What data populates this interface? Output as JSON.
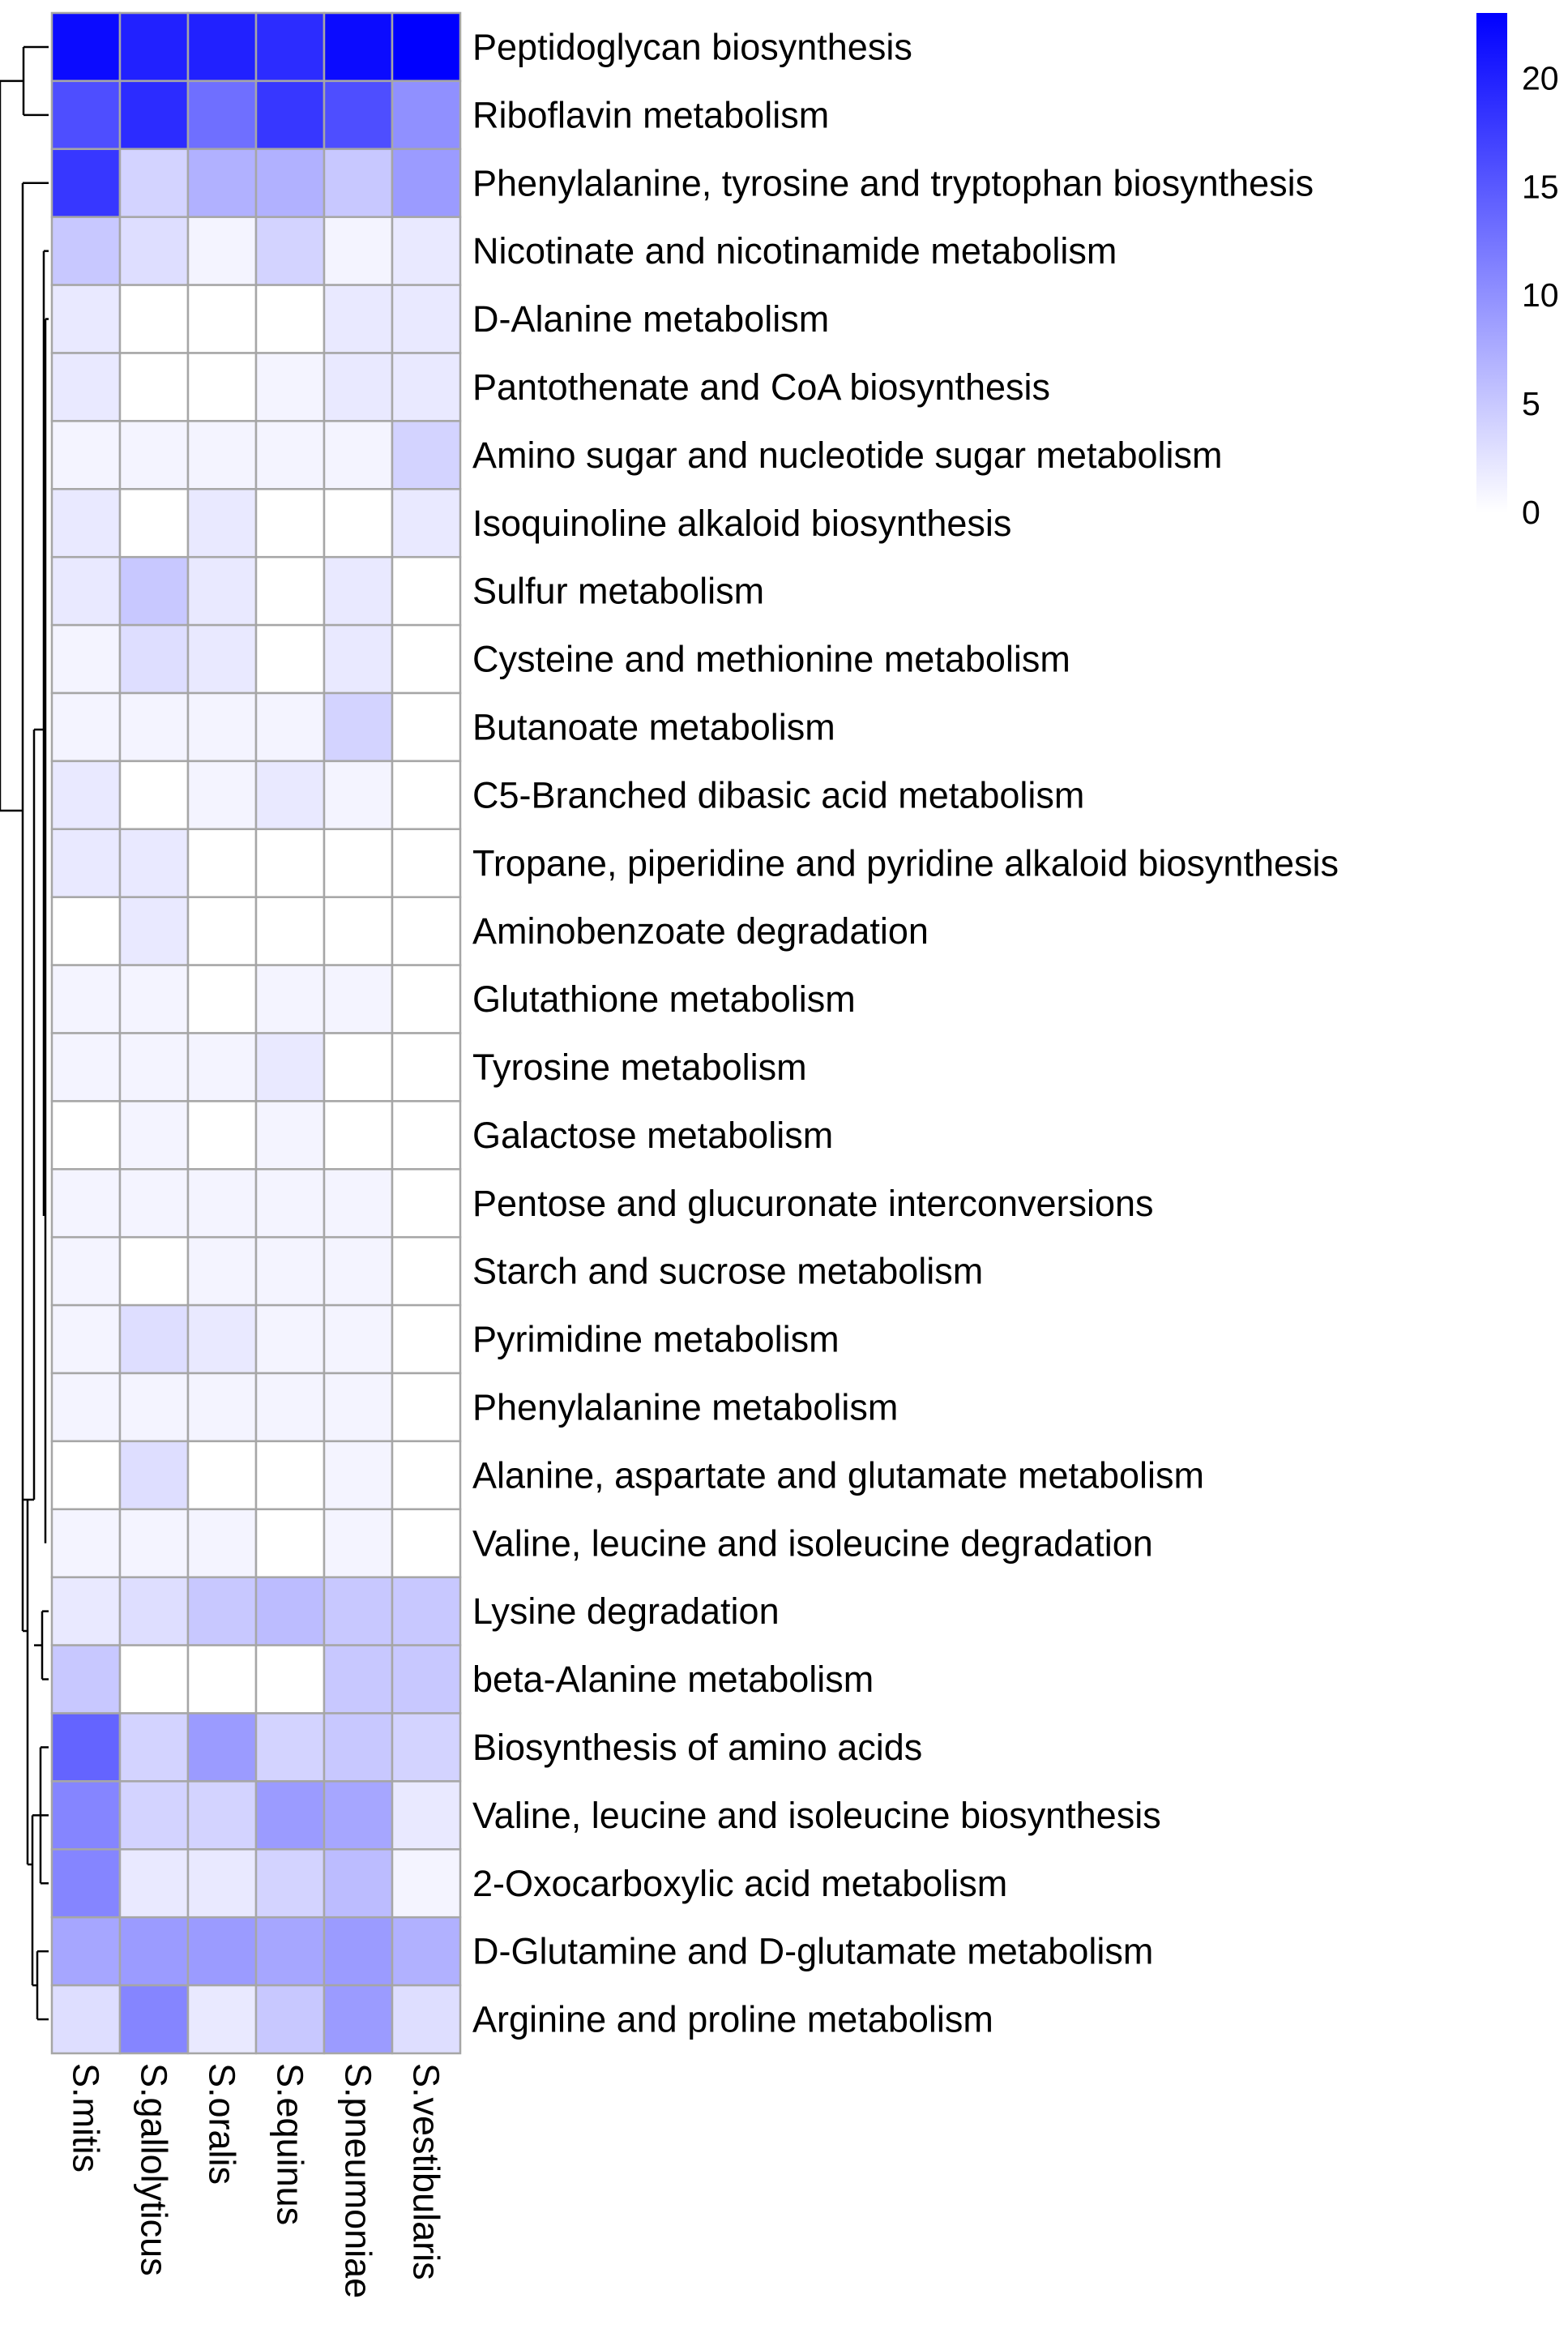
{
  "chart_data": {
    "type": "heatmap",
    "title": "",
    "xlabel": "",
    "ylabel": "",
    "columns": [
      "S.mitis",
      "S.gallolyticus",
      "S.oralis",
      "S.equinus",
      "S.pneumoniae",
      "S.vestibularis"
    ],
    "rows": [
      "Peptidoglycan biosynthesis",
      "Riboflavin metabolism",
      "Phenylalanine, tyrosine and tryptophan biosynthesis",
      "Nicotinate and nicotinamide metabolism",
      "D-Alanine metabolism",
      "Pantothenate and CoA biosynthesis",
      "Amino sugar and nucleotide sugar metabolism",
      "Isoquinoline alkaloid biosynthesis",
      "Sulfur metabolism",
      "Cysteine and methionine metabolism",
      "Butanoate metabolism",
      "C5-Branched dibasic acid metabolism",
      "Tropane, piperidine and pyridine alkaloid biosynthesis",
      "Aminobenzoate degradation",
      "Glutathione metabolism",
      "Tyrosine metabolism",
      "Galactose metabolism",
      "Pentose and glucuronate interconversions",
      "Starch and sucrose metabolism",
      "Pyrimidine metabolism",
      "Phenylalanine metabolism",
      "Alanine, aspartate and glutamate metabolism",
      "Valine, leucine and isoleucine degradation",
      "Lysine degradation",
      "beta-Alanine metabolism",
      "Biosynthesis of amino acids",
      "Valine, leucine and isoleucine biosynthesis",
      "2-Oxocarboxylic acid metabolism",
      "D-Glutamine and D-glutamate metabolism",
      "Arginine and proline metabolism"
    ],
    "values": [
      [
        22,
        20,
        20,
        19,
        22,
        23
      ],
      [
        16,
        19,
        13,
        18,
        16,
        10
      ],
      [
        18,
        4,
        7,
        7,
        5,
        9
      ],
      [
        5,
        3,
        1,
        4,
        1,
        2
      ],
      [
        2,
        0,
        0,
        0,
        2,
        2
      ],
      [
        2,
        0,
        0,
        1,
        2,
        2
      ],
      [
        1,
        1,
        1,
        1,
        1,
        4
      ],
      [
        2,
        0,
        2,
        0,
        0,
        2
      ],
      [
        2,
        5,
        2,
        0,
        2,
        0
      ],
      [
        1,
        3,
        2,
        0,
        2,
        0
      ],
      [
        1,
        1,
        1,
        1,
        4,
        0
      ],
      [
        2,
        0,
        1,
        2,
        1,
        0
      ],
      [
        2,
        2,
        0,
        0,
        0,
        0
      ],
      [
        0,
        2,
        0,
        0,
        0,
        0
      ],
      [
        1,
        1,
        0,
        1,
        1,
        0
      ],
      [
        1,
        1,
        1,
        2,
        0,
        0
      ],
      [
        0,
        1,
        0,
        1,
        0,
        0
      ],
      [
        1,
        1,
        1,
        1,
        1,
        0
      ],
      [
        1,
        0,
        1,
        1,
        1,
        0
      ],
      [
        1,
        3,
        2,
        1,
        1,
        0
      ],
      [
        1,
        1,
        1,
        1,
        1,
        0
      ],
      [
        0,
        3,
        0,
        0,
        1,
        0
      ],
      [
        1,
        1,
        1,
        0,
        1,
        0
      ],
      [
        2,
        3,
        5,
        6,
        5,
        5
      ],
      [
        5,
        0,
        0,
        0,
        5,
        5
      ],
      [
        14,
        4,
        9,
        4,
        5,
        4
      ],
      [
        11,
        4,
        4,
        9,
        8,
        2
      ],
      [
        11,
        2,
        2,
        4,
        6,
        1
      ],
      [
        8,
        9,
        9,
        8,
        9,
        7
      ],
      [
        3,
        11,
        2,
        5,
        9,
        3
      ]
    ],
    "color_low": "#ffffff",
    "color_high": "#0000ff",
    "cell_border_color": "#a6a6a6",
    "value_range": [
      0,
      23
    ],
    "legend": {
      "position": "top-right",
      "ticks": [
        0,
        5,
        10,
        15,
        20
      ]
    },
    "row_dendrogram": true
  }
}
